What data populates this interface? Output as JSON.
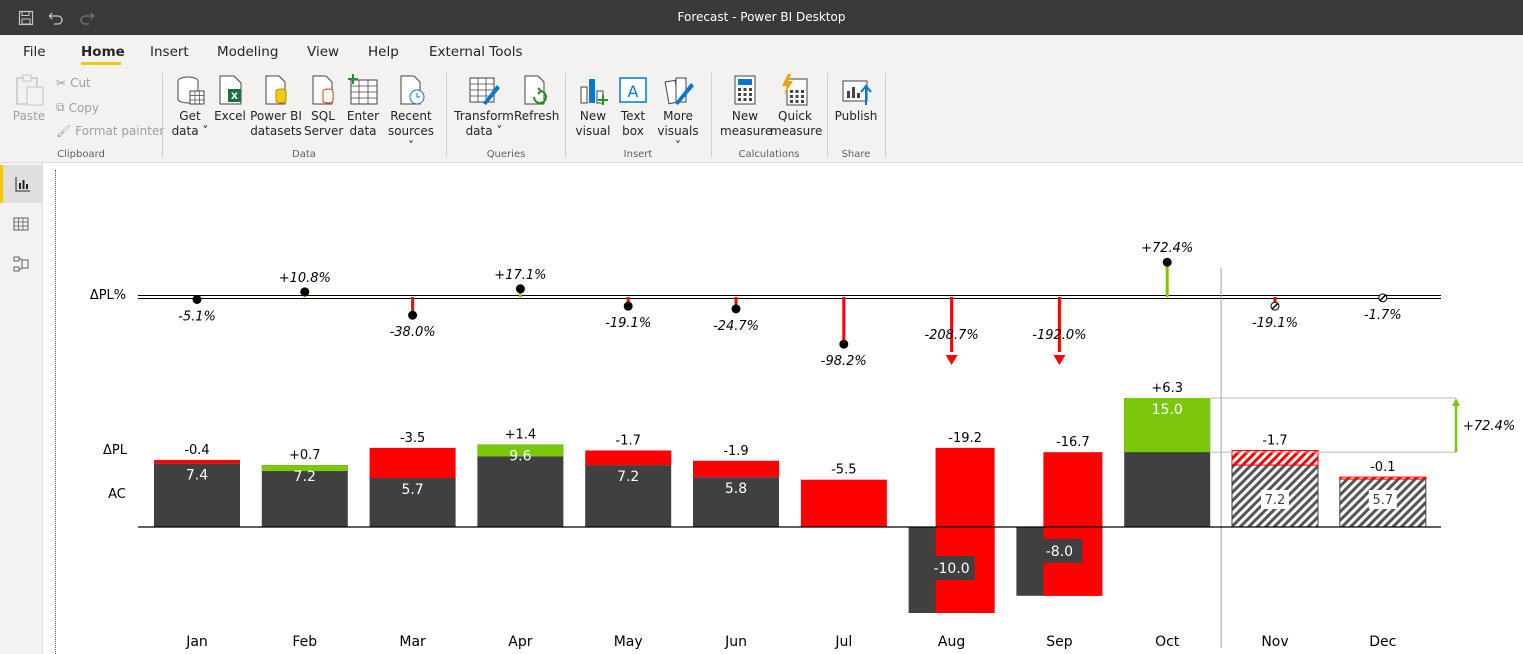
{
  "window": {
    "title": "Forecast - Power BI Desktop"
  },
  "menu": {
    "file": "File",
    "home": "Home",
    "insert": "Insert",
    "modeling": "Modeling",
    "view": "View",
    "help": "Help",
    "external_tools": "External Tools"
  },
  "ribbon": {
    "clipboard": {
      "paste": "Paste",
      "cut": "Cut",
      "copy": "Copy",
      "format_painter": "Format painter",
      "group": "Clipboard"
    },
    "data": {
      "get_data_1": "Get",
      "get_data_2": "data",
      "excel": "Excel",
      "pbi_1": "Power BI",
      "pbi_2": "datasets",
      "sql_1": "SQL",
      "sql_2": "Server",
      "enter_1": "Enter",
      "enter_2": "data",
      "recent_1": "Recent",
      "recent_2": "sources",
      "group": "Data"
    },
    "queries": {
      "transform_1": "Transform",
      "transform_2": "data",
      "refresh": "Refresh",
      "group": "Queries"
    },
    "insert": {
      "new_visual_1": "New",
      "new_visual_2": "visual",
      "text_box_1": "Text",
      "text_box_2": "box",
      "more_1": "More",
      "more_2": "visuals",
      "group": "Insert"
    },
    "calculations": {
      "new_measure_1": "New",
      "new_measure_2": "measure",
      "quick_1": "Quick",
      "quick_2": "measure",
      "group": "Calculations"
    },
    "share": {
      "publish": "Publish",
      "group": "Share"
    }
  },
  "nav": {
    "report": "report-view-icon",
    "data": "data-view-icon",
    "model": "model-view-icon"
  },
  "colors": {
    "actual": "#404040",
    "positive": "#7ac70c",
    "negative": "#ff0000",
    "plan_line": "#000000",
    "accent": "#f2c811"
  },
  "chart_data": {
    "type": "bar",
    "categories": [
      "Jan",
      "Feb",
      "Mar",
      "Apr",
      "May",
      "Jun",
      "Jul",
      "Aug",
      "Sep",
      "Oct",
      "Nov",
      "Dec"
    ],
    "row_labels": {
      "delta_pl_pct": "ΔPL%",
      "delta_pl": "ΔPL",
      "ac": "AC"
    },
    "series": [
      {
        "name": "AC",
        "values": [
          7.4,
          7.2,
          5.7,
          9.6,
          7.2,
          5.8,
          0,
          -10.0,
          -8.0,
          15.0,
          7.2,
          5.7
        ],
        "labels": [
          "7.4",
          "7.2",
          "5.7",
          "9.6",
          "7.2",
          "5.8",
          "",
          "-10.0",
          "-8.0",
          "15.0",
          "7.2",
          "5.7"
        ]
      },
      {
        "name": "ΔPL",
        "values": [
          -0.4,
          0.7,
          -3.5,
          1.4,
          -1.7,
          -1.9,
          -5.5,
          -19.2,
          -16.7,
          6.3,
          -1.7,
          -0.1
        ],
        "labels": [
          "-0.4",
          "+0.7",
          "-3.5",
          "+1.4",
          "-1.7",
          "-1.9",
          "-5.5",
          "-19.2",
          "-16.7",
          "+6.3",
          "-1.7",
          "-0.1"
        ]
      },
      {
        "name": "ΔPL%",
        "values": [
          -5.1,
          10.8,
          -38.0,
          17.1,
          -19.1,
          -24.7,
          -98.2,
          -208.7,
          -192.0,
          72.4,
          -19.1,
          -1.7
        ],
        "labels": [
          "-5.1%",
          "+10.8%",
          "-38.0%",
          "+17.1%",
          "-19.1%",
          "-24.7%",
          "-98.2%",
          "-208.7%",
          "-192.0%",
          "+72.4%",
          "-19.1%",
          "-1.7%"
        ]
      }
    ],
    "forecast_from": "Nov",
    "annotation": "+72.4%",
    "xlabel": "",
    "ylabel": ""
  }
}
